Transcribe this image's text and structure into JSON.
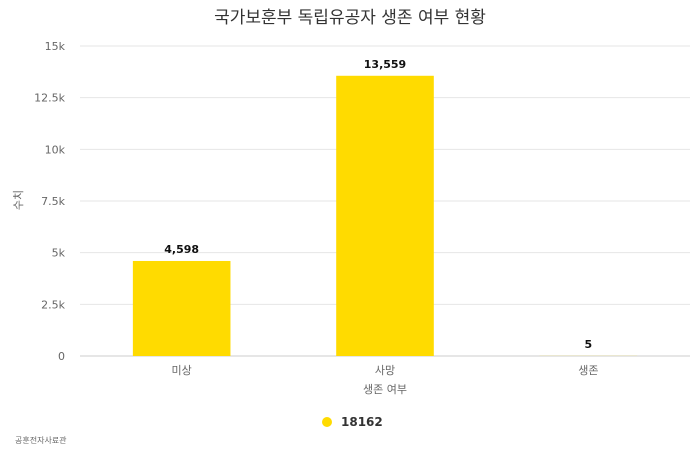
{
  "chart_data": {
    "type": "bar",
    "title": "국가보훈부 독립유공자 생존 여부 현황",
    "xlabel": "생존 여부",
    "ylabel": "수치",
    "categories": [
      "미상",
      "사망",
      "생존"
    ],
    "series": [
      {
        "name": "18162",
        "values": [
          4598,
          13559,
          5
        ],
        "color": "#FFDB00"
      }
    ],
    "data_labels": [
      "4,598",
      "13,559",
      "5"
    ],
    "ylim": [
      0,
      15000
    ],
    "yticks": [
      0,
      2500,
      5000,
      7500,
      10000,
      12500,
      15000
    ],
    "ytick_labels": [
      "0",
      "2.5k",
      "5k",
      "7.5k",
      "10k",
      "12.5k",
      "15k"
    ],
    "grid": true,
    "legend_position": "bottom-center"
  },
  "credit": "공훈전자사료관"
}
